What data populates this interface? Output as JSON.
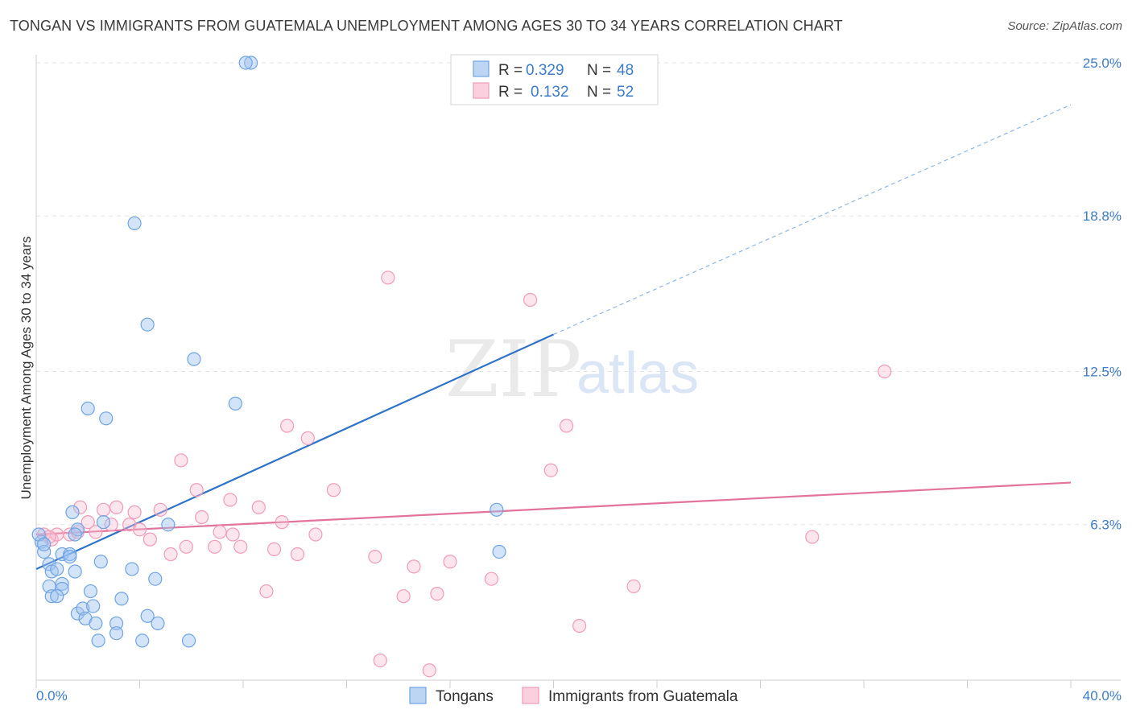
{
  "title": "TONGAN VS IMMIGRANTS FROM GUATEMALA UNEMPLOYMENT AMONG AGES 30 TO 34 YEARS CORRELATION CHART",
  "source": "Source: ZipAtlas.com",
  "watermark": {
    "zip": "ZIP",
    "atlas": "atlas"
  },
  "legend": {
    "rows": [
      {
        "r_label": "R =",
        "r_value": "0.329",
        "n_label": "N =",
        "n_value": "48"
      },
      {
        "r_label": "R =",
        "r_value": "0.132",
        "n_label": "N =",
        "n_value": "52"
      }
    ]
  },
  "bottom_legend": [
    "Tongans",
    "Immigrants from Guatemala"
  ],
  "chart_data": {
    "type": "scatter",
    "title": "TONGAN VS IMMIGRANTS FROM GUATEMALA UNEMPLOYMENT AMONG AGES 30 TO 34 YEARS CORRELATION CHART",
    "xlabel": "",
    "ylabel": "Unemployment Among Ages 30 to 34 years",
    "xlim": [
      0,
      40
    ],
    "ylim": [
      0,
      25
    ],
    "x_tick_labels": [
      "0.0%",
      "40.0%"
    ],
    "y_ticks": [
      6.3,
      12.5,
      18.8,
      25.0
    ],
    "y_tick_labels": [
      "6.3%",
      "12.5%",
      "18.8%",
      "25.0%"
    ],
    "colors": {
      "tongans": "#6fa3e3",
      "guatemala": "#f19bb8",
      "tongans_line": "#2f73c9",
      "guatemala_line": "#e2739c"
    },
    "series": [
      {
        "name": "Tongans",
        "r": 0.329,
        "n": 48,
        "trend": {
          "x0": 0,
          "y0": 4.5,
          "x1": 20,
          "y1": 14.0,
          "dashed_to_x": 40,
          "dashed_to_y": 23.3
        },
        "points": [
          [
            8.3,
            25.0
          ],
          [
            8.1,
            25.0
          ],
          [
            3.8,
            18.5
          ],
          [
            4.3,
            14.4
          ],
          [
            6.1,
            13.0
          ],
          [
            7.7,
            11.2
          ],
          [
            2.0,
            11.0
          ],
          [
            2.7,
            10.6
          ],
          [
            17.8,
            6.9
          ],
          [
            0.2,
            5.6
          ],
          [
            0.1,
            5.9
          ],
          [
            0.3,
            5.2
          ],
          [
            1.0,
            5.1
          ],
          [
            1.3,
            5.1
          ],
          [
            1.6,
            6.1
          ],
          [
            1.5,
            5.9
          ],
          [
            1.4,
            6.8
          ],
          [
            2.6,
            6.4
          ],
          [
            5.1,
            6.3
          ],
          [
            0.5,
            4.7
          ],
          [
            0.6,
            4.4
          ],
          [
            0.8,
            4.5
          ],
          [
            1.5,
            4.4
          ],
          [
            2.5,
            4.8
          ],
          [
            3.7,
            4.5
          ],
          [
            4.6,
            4.1
          ],
          [
            0.5,
            3.8
          ],
          [
            1.0,
            3.9
          ],
          [
            1.0,
            3.7
          ],
          [
            0.6,
            3.4
          ],
          [
            0.8,
            3.4
          ],
          [
            2.1,
            3.6
          ],
          [
            3.3,
            3.3
          ],
          [
            1.6,
            2.7
          ],
          [
            1.8,
            2.9
          ],
          [
            2.2,
            3.0
          ],
          [
            1.9,
            2.5
          ],
          [
            2.3,
            2.3
          ],
          [
            3.1,
            2.3
          ],
          [
            4.3,
            2.6
          ],
          [
            4.7,
            2.3
          ],
          [
            3.1,
            1.9
          ],
          [
            2.4,
            1.6
          ],
          [
            4.1,
            1.6
          ],
          [
            5.9,
            1.6
          ],
          [
            17.9,
            5.2
          ],
          [
            0.3,
            5.5
          ],
          [
            1.3,
            5.0
          ]
        ]
      },
      {
        "name": "Immigrants from Guatemala",
        "r": 0.132,
        "n": 52,
        "trend": {
          "x0": 0,
          "y0": 5.9,
          "x1": 40,
          "y1": 8.0
        },
        "points": [
          [
            13.6,
            16.3
          ],
          [
            19.1,
            15.4
          ],
          [
            32.8,
            12.5
          ],
          [
            20.5,
            10.3
          ],
          [
            9.7,
            10.3
          ],
          [
            10.5,
            9.8
          ],
          [
            5.6,
            8.9
          ],
          [
            19.9,
            8.5
          ],
          [
            6.2,
            7.7
          ],
          [
            11.5,
            7.7
          ],
          [
            7.5,
            7.3
          ],
          [
            8.6,
            7.0
          ],
          [
            1.7,
            7.0
          ],
          [
            2.6,
            6.9
          ],
          [
            3.1,
            7.0
          ],
          [
            3.8,
            6.8
          ],
          [
            4.8,
            6.9
          ],
          [
            6.4,
            6.6
          ],
          [
            9.5,
            6.4
          ],
          [
            2.0,
            6.4
          ],
          [
            2.9,
            6.3
          ],
          [
            3.6,
            6.3
          ],
          [
            4.0,
            6.1
          ],
          [
            0.3,
            5.9
          ],
          [
            0.6,
            5.7
          ],
          [
            0.8,
            5.9
          ],
          [
            1.3,
            5.9
          ],
          [
            1.6,
            6.0
          ],
          [
            2.3,
            6.0
          ],
          [
            7.1,
            6.0
          ],
          [
            7.6,
            5.9
          ],
          [
            10.8,
            5.9
          ],
          [
            30.0,
            5.8
          ],
          [
            4.4,
            5.7
          ],
          [
            5.8,
            5.4
          ],
          [
            6.9,
            5.4
          ],
          [
            7.9,
            5.4
          ],
          [
            9.2,
            5.3
          ],
          [
            5.2,
            5.1
          ],
          [
            10.1,
            5.1
          ],
          [
            13.1,
            5.0
          ],
          [
            16.0,
            4.8
          ],
          [
            14.6,
            4.6
          ],
          [
            17.6,
            4.1
          ],
          [
            23.1,
            3.8
          ],
          [
            8.9,
            3.6
          ],
          [
            14.2,
            3.4
          ],
          [
            15.5,
            3.5
          ],
          [
            21.0,
            2.2
          ],
          [
            13.3,
            0.8
          ],
          [
            15.2,
            0.4
          ],
          [
            0.5,
            5.8
          ]
        ]
      }
    ]
  }
}
